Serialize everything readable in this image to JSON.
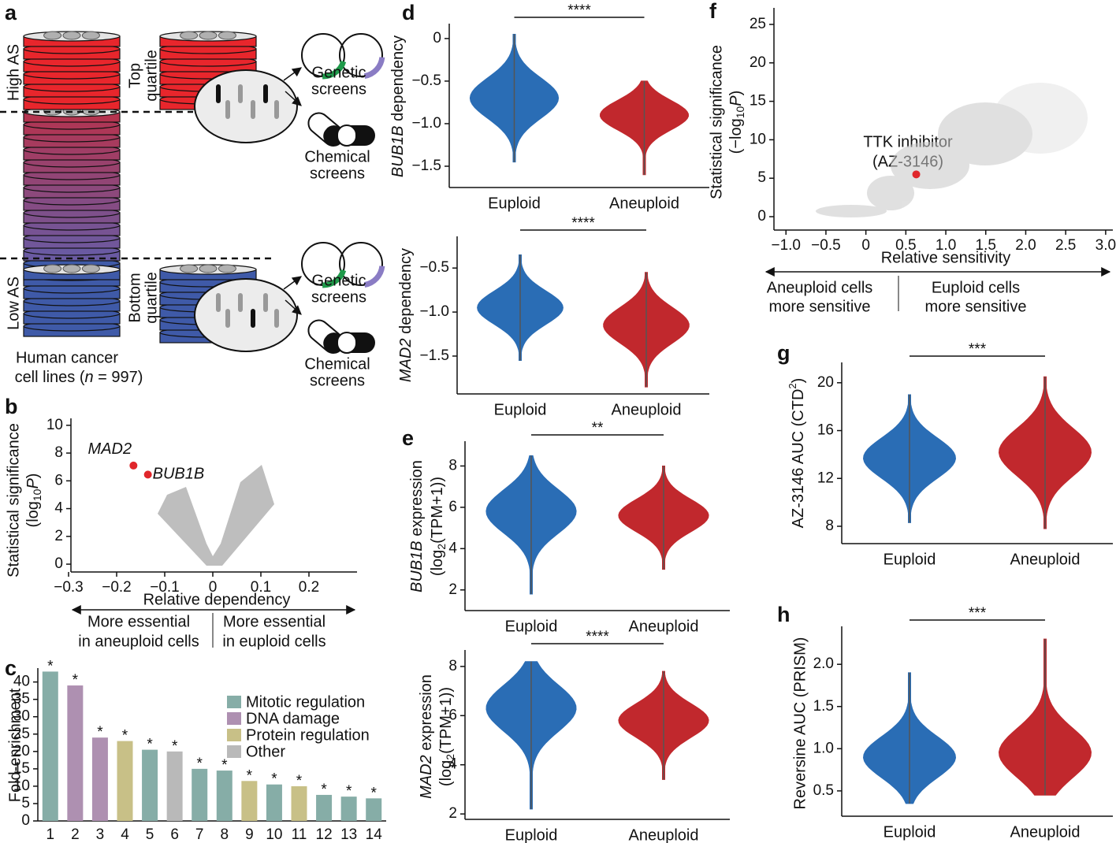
{
  "panel_labels": [
    "a",
    "b",
    "c",
    "d",
    "e",
    "f",
    "g",
    "h"
  ],
  "panel_a": {
    "high": "High AS",
    "top": [
      "Top",
      "quartile"
    ],
    "low": "Low AS",
    "bottom": [
      "Bottom",
      "quartile"
    ],
    "genetic": [
      "Genetic",
      "screens"
    ],
    "chemical": [
      "Chemical",
      "screens"
    ],
    "cell_lines": [
      "Human cancer",
      "cell lines (",
      "n",
      " = 997)"
    ]
  },
  "chart_data": [
    {
      "type": "scatter",
      "x": [
        -0.165,
        -0.135
      ],
      "y": [
        7.1,
        6.45
      ],
      "point_labels": [
        "MAD2",
        "BUB1B"
      ],
      "color": "#e0262b",
      "xlim": [
        -0.3,
        0.3
      ],
      "ylim": [
        -0.45,
        10.5
      ],
      "xticks": [
        {
          "value": -0.3,
          "label": "−0.3"
        },
        {
          "value": -0.2,
          "label": "−0.2"
        },
        {
          "value": -0.1,
          "label": "−0.1"
        },
        0,
        0.1,
        0.2
      ],
      "yticks": [
        0,
        2,
        4,
        6,
        8,
        10
      ],
      "xlabel": "Relative dependency",
      "ylabel": [
        "Statistical significance",
        [
          "(log",
          "10",
          "P",
          ")"
        ]
      ],
      "arrow_labels": [
        [
          "More essential",
          "in aneuploid cells"
        ],
        [
          "More essential",
          "in euploid cells"
        ]
      ]
    },
    {
      "type": "bar",
      "categories": [
        "1",
        "2",
        "3",
        "4",
        "5",
        "6",
        "7",
        "8",
        "9",
        "10",
        "11",
        "12",
        "13",
        "14"
      ],
      "values": [
        43,
        39,
        24,
        23,
        20.5,
        20,
        15,
        14.5,
        11.5,
        10.5,
        10,
        7.5,
        7,
        6.5
      ],
      "colors": [
        "#86ada7",
        "#ae90b1",
        "#ae90b1",
        "#c8c087",
        "#86ada7",
        "#b9b9b9",
        "#86ada7",
        "#86ada7",
        "#c8c087",
        "#86ada7",
        "#c8c087",
        "#86ada7",
        "#86ada7",
        "#86ada7"
      ],
      "annotations": [
        "*",
        "*",
        "*",
        "*",
        "*",
        "*",
        "*",
        "*",
        "*",
        "*",
        "*",
        "*",
        "*",
        "*"
      ],
      "legend": [
        {
          "name": "Mitotic regulation",
          "color": "#86ada7"
        },
        {
          "name": "DNA damage",
          "color": "#ae90b1"
        },
        {
          "name": "Protein regulation",
          "color": "#c8c087"
        },
        {
          "name": "Other",
          "color": "#b9b9b9"
        }
      ],
      "ylim": [
        0,
        44
      ],
      "yticks": [
        0,
        5,
        10,
        15,
        20,
        25,
        30,
        35,
        40
      ],
      "ylabel": "Fold-enrichment"
    },
    {
      "type": "violin",
      "categories": [
        "Euploid",
        "Aneuploid"
      ],
      "colors": [
        "#2a6db5",
        "#c1282d"
      ],
      "min": [
        -1.45,
        -1.6
      ],
      "median": [
        -0.7,
        -0.9
      ],
      "max": [
        0.05,
        -0.5
      ],
      "ylim": [
        -1.75,
        0.175
      ],
      "yticks": [
        0,
        {
          "value": -0.5,
          "label": "−0.5"
        },
        {
          "value": -1,
          "label": "−1.0"
        },
        {
          "value": -1.5,
          "label": "−1.5"
        }
      ],
      "ylabel": [
        "BUB1B",
        " dependency"
      ],
      "significance": "****"
    },
    {
      "type": "violin",
      "categories": [
        "Euploid",
        "Aneuploid"
      ],
      "colors": [
        "#2a6db5",
        "#c1282d"
      ],
      "min": [
        -1.55,
        -1.85
      ],
      "median": [
        -0.95,
        -1.15
      ],
      "max": [
        -0.35,
        -0.55
      ],
      "ylim": [
        -1.93,
        -0.14
      ],
      "yticks": [
        {
          "value": -0.5,
          "label": "−0.5"
        },
        {
          "value": -1,
          "label": "−1.0"
        },
        {
          "value": -1.5,
          "label": "−1.5"
        }
      ],
      "ylabel": [
        "MAD2",
        " dependency"
      ],
      "significance": "****"
    },
    {
      "type": "violin",
      "categories": [
        "Euploid",
        "Aneuploid"
      ],
      "colors": [
        "#2a6db5",
        "#c1282d"
      ],
      "min": [
        1.8,
        3
      ],
      "median": [
        5.8,
        5.6
      ],
      "max": [
        8.5,
        8
      ],
      "ylim": [
        1,
        9.2
      ],
      "yticks": [
        2,
        4,
        6,
        8
      ],
      "ylabel": [
        [
          "BUB1B",
          " expression"
        ],
        [
          "(log",
          "2",
          "(TPM+1))"
        ]
      ],
      "significance": "**"
    },
    {
      "type": "violin",
      "categories": [
        "Euploid",
        "Aneuploid"
      ],
      "colors": [
        "#2a6db5",
        "#c1282d"
      ],
      "min": [
        2.2,
        3.4
      ],
      "median": [
        6.3,
        5.8
      ],
      "max": [
        8.2,
        7.8
      ],
      "ylim": [
        1.78,
        8.67
      ],
      "yticks": [
        2,
        4,
        6,
        8
      ],
      "ylabel": [
        [
          "MAD2",
          " expression"
        ],
        [
          "(log",
          "2",
          "(TPM+1))"
        ]
      ],
      "significance": "****"
    },
    {
      "type": "scatter",
      "x": [
        0.63
      ],
      "y": [
        5.5
      ],
      "point_labels": [],
      "color": "#e0262b",
      "annotation": [
        "TTK inhibitor",
        "(AZ-3146)"
      ],
      "xlim": [
        -1.17,
        3.09
      ],
      "ylim": [
        -1.74,
        27.15
      ],
      "xticks": [
        {
          "value": -1,
          "label": "−1.0"
        },
        {
          "value": -0.5,
          "label": "−0.5"
        },
        0,
        0.5,
        {
          "value": 1,
          "label": "1.0"
        },
        1.5,
        {
          "value": 2,
          "label": "2.0"
        },
        2.5,
        {
          "value": 3,
          "label": "3.0"
        }
      ],
      "yticks": [
        0,
        5,
        10,
        15,
        20,
        25
      ],
      "xlabel": "Relative sensitivity",
      "ylabel": [
        "Statistical significance",
        [
          "(−log",
          "10",
          "P",
          ")"
        ]
      ],
      "arrow_labels": [
        [
          "Aneuploid cells",
          "more sensitive"
        ],
        [
          "Euploid cells",
          "more sensitive"
        ]
      ]
    },
    {
      "type": "violin",
      "categories": [
        "Euploid",
        "Aneuploid"
      ],
      "colors": [
        "#2a6db5",
        "#c1282d"
      ],
      "min": [
        8.3,
        7.8
      ],
      "median": [
        13.7,
        14.2
      ],
      "max": [
        19,
        20.5
      ],
      "ylim": [
        6.55,
        21.7
      ],
      "yticks": [
        8,
        12,
        16,
        20
      ],
      "ylabel": [
        "AZ-3146 AUC (CTD",
        "2",
        ")"
      ],
      "significance": "***"
    },
    {
      "type": "violin",
      "categories": [
        "Euploid",
        "Aneuploid"
      ],
      "colors": [
        "#2a6db5",
        "#c1282d"
      ],
      "min": [
        0.35,
        0.45
      ],
      "median": [
        0.9,
        0.95
      ],
      "max": [
        1.9,
        2.3
      ],
      "ylim": [
        0.2,
        2.45
      ],
      "yticks": [
        0.5,
        {
          "value": 1,
          "label": "1.0"
        },
        1.5,
        {
          "value": 2,
          "label": "2.0"
        }
      ],
      "ylabel": "Reversine AUC (PRISM)",
      "significance": "***"
    }
  ]
}
